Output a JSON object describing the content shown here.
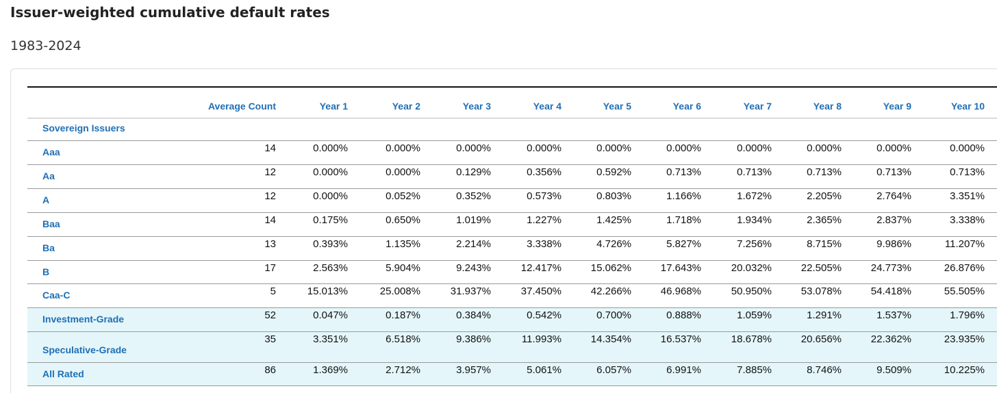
{
  "header": {
    "title": "Issuer-weighted cumulative default rates",
    "subtitle": "1983-2024"
  },
  "table": {
    "columns": [
      "Average Count",
      "Year 1",
      "Year 2",
      "Year 3",
      "Year 4",
      "Year 5",
      "Year 6",
      "Year 7",
      "Year 8",
      "Year 9",
      "Year 10"
    ],
    "section": "Sovereign Issuers",
    "rows": [
      {
        "label": "Aaa",
        "cells": [
          "14",
          "0.000%",
          "0.000%",
          "0.000%",
          "0.000%",
          "0.000%",
          "0.000%",
          "0.000%",
          "0.000%",
          "0.000%",
          "0.000%"
        ]
      },
      {
        "label": "Aa",
        "cells": [
          "12",
          "0.000%",
          "0.000%",
          "0.129%",
          "0.356%",
          "0.592%",
          "0.713%",
          "0.713%",
          "0.713%",
          "0.713%",
          "0.713%"
        ]
      },
      {
        "label": "A",
        "cells": [
          "12",
          "0.000%",
          "0.052%",
          "0.352%",
          "0.573%",
          "0.803%",
          "1.166%",
          "1.672%",
          "2.205%",
          "2.764%",
          "3.351%"
        ]
      },
      {
        "label": "Baa",
        "cells": [
          "14",
          "0.175%",
          "0.650%",
          "1.019%",
          "1.227%",
          "1.425%",
          "1.718%",
          "1.934%",
          "2.365%",
          "2.837%",
          "3.338%"
        ]
      },
      {
        "label": "Ba",
        "cells": [
          "13",
          "0.393%",
          "1.135%",
          "2.214%",
          "3.338%",
          "4.726%",
          "5.827%",
          "7.256%",
          "8.715%",
          "9.986%",
          "11.207%"
        ]
      },
      {
        "label": "B",
        "cells": [
          "17",
          "2.563%",
          "5.904%",
          "9.243%",
          "12.417%",
          "15.062%",
          "17.643%",
          "20.032%",
          "22.505%",
          "24.773%",
          "26.876%"
        ]
      },
      {
        "label": "Caa-C",
        "cells": [
          "5",
          "15.013%",
          "25.008%",
          "31.937%",
          "37.450%",
          "42.266%",
          "46.968%",
          "50.950%",
          "53.078%",
          "54.418%",
          "55.505%"
        ]
      },
      {
        "label": "Investment-Grade",
        "cells": [
          "52",
          "0.047%",
          "0.187%",
          "0.384%",
          "0.542%",
          "0.700%",
          "0.888%",
          "1.059%",
          "1.291%",
          "1.537%",
          "1.796%"
        ]
      },
      {
        "label": "Speculative-Grade",
        "cells": [
          "35",
          "3.351%",
          "6.518%",
          "9.386%",
          "11.993%",
          "14.354%",
          "16.537%",
          "18.678%",
          "20.656%",
          "22.362%",
          "23.935%"
        ]
      },
      {
        "label": "All Rated",
        "cells": [
          "86",
          "1.369%",
          "2.712%",
          "3.957%",
          "5.061%",
          "6.057%",
          "6.991%",
          "7.885%",
          "8.746%",
          "9.509%",
          "10.225%"
        ]
      }
    ]
  }
}
